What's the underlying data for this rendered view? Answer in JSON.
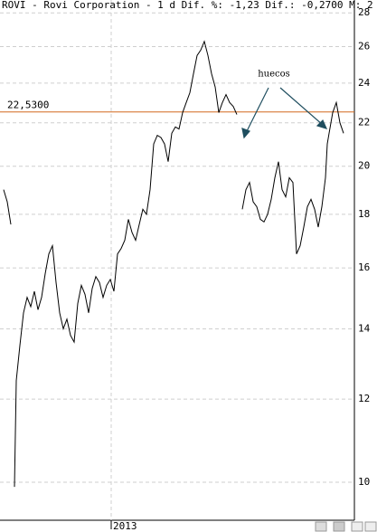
{
  "chart_data": {
    "type": "line",
    "title": "ROVI - Rovi Corporation -  1 d Dif. %: -1,23 Dif.: -0,2700 M: 2",
    "x": [
      2,
      4,
      6,
      7,
      8,
      9,
      11,
      13,
      15,
      17,
      19,
      21,
      23,
      25,
      27,
      29,
      31,
      33,
      35,
      37,
      39,
      41,
      43,
      45,
      47,
      49,
      51,
      53,
      55,
      57,
      59,
      61,
      63,
      65,
      67,
      69,
      71,
      73,
      75,
      77,
      79,
      81,
      83,
      85,
      87,
      89,
      91,
      93,
      95,
      97,
      99,
      101,
      103,
      105,
      107,
      109,
      111,
      113,
      115,
      117,
      119,
      121,
      123,
      125,
      127,
      129,
      131,
      132,
      134,
      136,
      138,
      140,
      142,
      144,
      146,
      148,
      150,
      152,
      154,
      156,
      158,
      160,
      162,
      164,
      166,
      168,
      170,
      172,
      174,
      176,
      178,
      180,
      181,
      182,
      184,
      186,
      188,
      190
    ],
    "series": [
      {
        "name": "ROVI",
        "color": "#000000",
        "values": [
          19.0,
          18.5,
          17.6,
          null,
          9.9,
          12.5,
          13.5,
          14.5,
          15.0,
          14.7,
          15.2,
          14.6,
          15.0,
          15.8,
          16.5,
          16.8,
          15.5,
          14.5,
          14.0,
          14.3,
          13.8,
          13.6,
          14.8,
          15.4,
          15.1,
          14.5,
          15.3,
          15.7,
          15.5,
          15.0,
          15.4,
          15.6,
          15.2,
          16.5,
          16.7,
          17.0,
          17.8,
          17.3,
          17.0,
          17.6,
          18.2,
          18.0,
          19.0,
          21.0,
          21.4,
          21.3,
          21.0,
          20.2,
          21.5,
          21.8,
          21.7,
          22.5,
          23.0,
          23.5,
          24.5,
          25.5,
          25.8,
          26.3,
          25.5,
          24.5,
          23.8,
          22.5,
          23.0,
          23.4,
          23.0,
          22.8,
          22.4,
          null,
          18.2,
          19.0,
          19.3,
          18.5,
          18.3,
          17.8,
          17.7,
          18.0,
          18.6,
          19.5,
          20.2,
          19.0,
          18.7,
          19.5,
          19.3,
          16.5,
          16.8,
          17.5,
          18.3,
          18.6,
          18.2,
          17.5,
          18.3,
          19.5,
          21.0,
          21.5,
          22.5,
          23.0,
          22.0,
          21.5
        ]
      }
    ],
    "xlim": [
      0,
      196
    ],
    "xticks": [
      {
        "value": 61.5,
        "label": "2013"
      }
    ],
    "ylim": [
      9.2,
      28.8
    ],
    "log_scale": true,
    "yticks": [
      10,
      12,
      14,
      16,
      18,
      20,
      22,
      24,
      26,
      28
    ],
    "grid": true,
    "reference_line": {
      "value": 22.53,
      "label": "22,5300",
      "color": "#d2691e"
    },
    "annotation": {
      "text": "huecos",
      "color": "#cc0000"
    }
  }
}
